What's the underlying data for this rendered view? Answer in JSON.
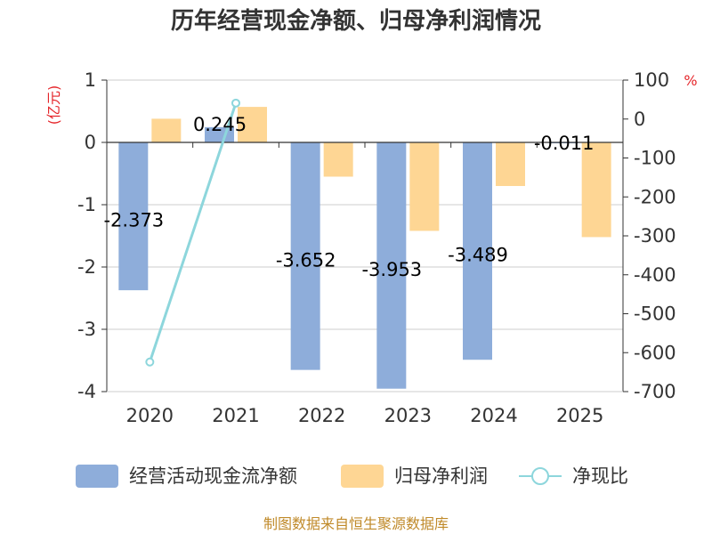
{
  "title": "历年经营现金净额、归母净利润情况",
  "source": "制图数据来自恒生聚源数据库",
  "units": {
    "left": "(亿元)",
    "right": "%"
  },
  "colors": {
    "cash": "#8eadda",
    "profit": "#fed694",
    "ratio": "#8dd6dc",
    "grid": "#cccccc",
    "axis": "#333333",
    "unit": "#e5252a",
    "source": "#c08a2a"
  },
  "legend": [
    {
      "key": "cash",
      "label": "经营活动现金流净额"
    },
    {
      "key": "profit",
      "label": "归母净利润"
    },
    {
      "key": "ratio",
      "label": "净现比"
    }
  ],
  "chart_data": {
    "type": "bar",
    "title": "历年经营现金净额、归母净利润情况",
    "categories": [
      "2020",
      "2021",
      "2022",
      "2023",
      "2024",
      "2025"
    ],
    "series": [
      {
        "name": "经营活动现金流净额",
        "axis": "left",
        "type": "bar",
        "values": [
          -2.373,
          0.245,
          -3.652,
          -3.953,
          -3.489,
          -0.011
        ],
        "labels": [
          "-2.373",
          "0.245",
          "-3.652",
          "-3.953",
          "-3.489",
          "-0.011"
        ]
      },
      {
        "name": "归母净利润",
        "axis": "left",
        "type": "bar",
        "values": [
          0.38,
          0.57,
          -0.55,
          -1.42,
          -0.7,
          -1.52
        ]
      },
      {
        "name": "净现比",
        "axis": "right",
        "type": "line",
        "values": [
          -624,
          41,
          null,
          null,
          null,
          null
        ]
      }
    ],
    "ylim_left": [
      -4,
      1
    ],
    "yticks_left": [
      1,
      0,
      -1,
      -2,
      -3,
      -4
    ],
    "ylim_right": [
      -700,
      100
    ],
    "yticks_right": [
      100,
      0,
      -100,
      -200,
      -300,
      -400,
      -500,
      -600,
      -700
    ],
    "grid": true,
    "legend_position": "bottom"
  }
}
